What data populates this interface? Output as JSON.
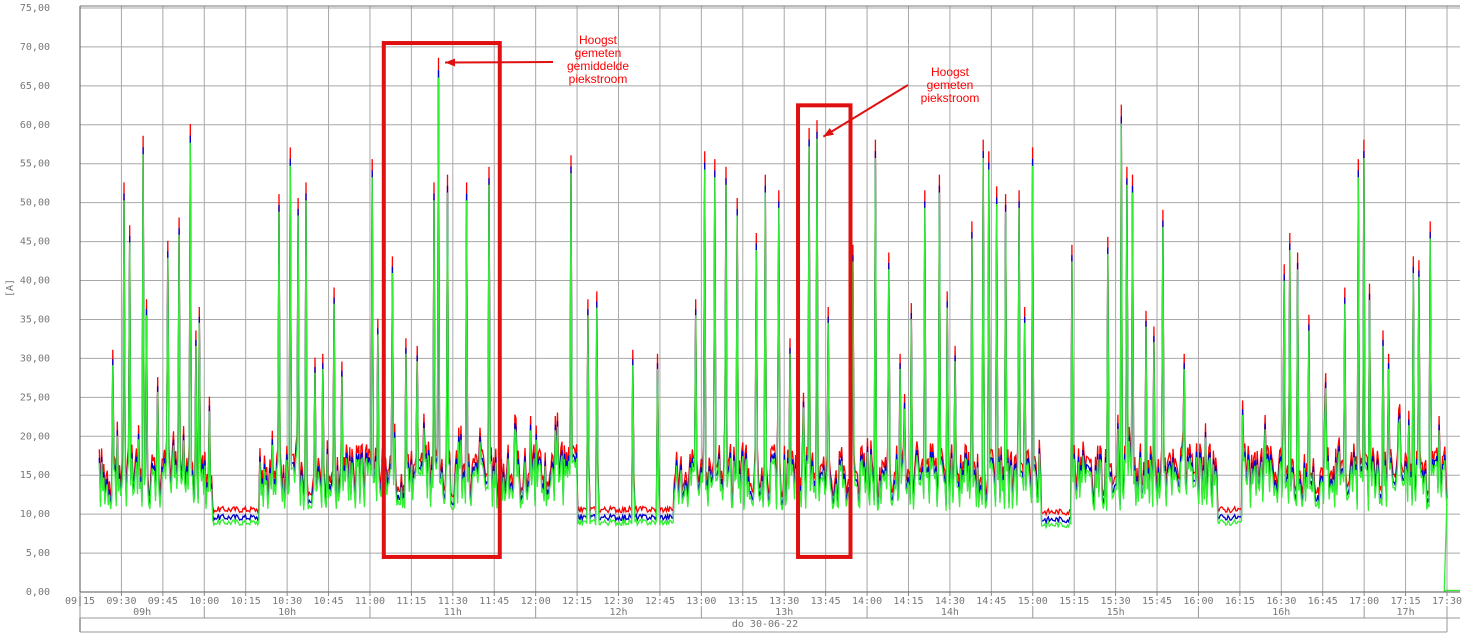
{
  "chart_data": {
    "type": "line",
    "ylabel": "[A]",
    "ylim": [
      0,
      75
    ],
    "yticks": [
      "0,00",
      "5,00",
      "10,00",
      "15,00",
      "20,00",
      "25,00",
      "30,00",
      "35,00",
      "40,00",
      "45,00",
      "50,00",
      "55,00",
      "60,00",
      "65,00",
      "70,00",
      "75,00"
    ],
    "xlim": [
      "09:15",
      "17:30"
    ],
    "xticks": [
      "09:15",
      "09:30",
      "09:45",
      "10:00",
      "10:15",
      "10:30",
      "10:45",
      "11:00",
      "11:15",
      "11:30",
      "11:45",
      "12:00",
      "12:15",
      "12:30",
      "12:45",
      "13:00",
      "13:15",
      "13:30",
      "13:45",
      "14:00",
      "14:15",
      "14:30",
      "14:45",
      "15:00",
      "15:15",
      "15:30",
      "15:45",
      "16:00",
      "16:15",
      "16:30",
      "16:45",
      "17:00",
      "17:15",
      "17:30"
    ],
    "hour_labels": [
      {
        "label": "09h",
        "from": "09:15",
        "to": "10:00"
      },
      {
        "label": "10h",
        "from": "10:00",
        "to": "11:00"
      },
      {
        "label": "11h",
        "from": "11:00",
        "to": "12:00"
      },
      {
        "label": "12h",
        "from": "12:00",
        "to": "13:00"
      },
      {
        "label": "13h",
        "from": "13:00",
        "to": "14:00"
      },
      {
        "label": "14h",
        "from": "14:00",
        "to": "15:00"
      },
      {
        "label": "15h",
        "from": "15:00",
        "to": "16:00"
      },
      {
        "label": "16h",
        "from": "16:00",
        "to": "17:00"
      },
      {
        "label": "17h",
        "from": "17:00",
        "to": "17:30"
      }
    ],
    "date_label": "do 30-06-22",
    "grid": true,
    "series": [
      {
        "color": "#ff0000"
      },
      {
        "color": "#0000cc"
      },
      {
        "color": "#33ee33"
      }
    ],
    "peaks": [
      {
        "t": "09:27",
        "v": 30.5
      },
      {
        "t": "09:31",
        "v": 52.0
      },
      {
        "t": "09:33",
        "v": 46.5
      },
      {
        "t": "09:38",
        "v": 58.0
      },
      {
        "t": "09:39",
        "v": 37.0
      },
      {
        "t": "09:43",
        "v": 27.0
      },
      {
        "t": "09:47",
        "v": 44.5
      },
      {
        "t": "09:51",
        "v": 47.5
      },
      {
        "t": "09:55",
        "v": 59.5
      },
      {
        "t": "09:57",
        "v": 33.0
      },
      {
        "t": "09:58",
        "v": 36.0
      },
      {
        "t": "10:02",
        "v": 24.5
      },
      {
        "t": "10:27",
        "v": 50.5
      },
      {
        "t": "10:31",
        "v": 56.5
      },
      {
        "t": "10:34",
        "v": 50.0
      },
      {
        "t": "10:37",
        "v": 52.0
      },
      {
        "t": "10:40",
        "v": 29.5
      },
      {
        "t": "10:43",
        "v": 30.0
      },
      {
        "t": "10:47",
        "v": 38.5
      },
      {
        "t": "10:50",
        "v": 29.0
      },
      {
        "t": "11:01",
        "v": 55.0
      },
      {
        "t": "11:03",
        "v": 34.5
      },
      {
        "t": "11:08",
        "v": 42.5
      },
      {
        "t": "11:13",
        "v": 32.0
      },
      {
        "t": "11:17",
        "v": 31.0
      },
      {
        "t": "11:23",
        "v": 52.0
      },
      {
        "t": "11:25",
        "v": 68.0
      },
      {
        "t": "11:28",
        "v": 53.0
      },
      {
        "t": "11:32",
        "v": 20.5
      },
      {
        "t": "11:35",
        "v": 52.0
      },
      {
        "t": "11:40",
        "v": 20.5
      },
      {
        "t": "11:43",
        "v": 54.0
      },
      {
        "t": "11:58",
        "v": 22.0
      },
      {
        "t": "12:07",
        "v": 22.0
      },
      {
        "t": "12:13",
        "v": 55.5
      },
      {
        "t": "12:19",
        "v": 37.0
      },
      {
        "t": "12:22",
        "v": 38.0
      },
      {
        "t": "12:35",
        "v": 30.5
      },
      {
        "t": "12:44",
        "v": 30.0
      },
      {
        "t": "12:58",
        "v": 37.0
      },
      {
        "t": "13:01",
        "v": 56.0
      },
      {
        "t": "13:05",
        "v": 55.0
      },
      {
        "t": "13:09",
        "v": 54.0
      },
      {
        "t": "13:13",
        "v": 50.0
      },
      {
        "t": "13:20",
        "v": 45.5
      },
      {
        "t": "13:23",
        "v": 53.0
      },
      {
        "t": "13:28",
        "v": 51.0
      },
      {
        "t": "13:32",
        "v": 32.0
      },
      {
        "t": "13:37",
        "v": 25.0
      },
      {
        "t": "13:39",
        "v": 59.0
      },
      {
        "t": "13:42",
        "v": 60.0
      },
      {
        "t": "13:46",
        "v": 36.0
      },
      {
        "t": "13:55",
        "v": 44.0
      },
      {
        "t": "14:03",
        "v": 57.5
      },
      {
        "t": "14:08",
        "v": 43.0
      },
      {
        "t": "14:12",
        "v": 30.0
      },
      {
        "t": "14:16",
        "v": 36.5
      },
      {
        "t": "14:21",
        "v": 51.0
      },
      {
        "t": "14:26",
        "v": 53.0
      },
      {
        "t": "14:29",
        "v": 38.0
      },
      {
        "t": "14:32",
        "v": 31.0
      },
      {
        "t": "14:38",
        "v": 47.0
      },
      {
        "t": "14:42",
        "v": 57.5
      },
      {
        "t": "14:44",
        "v": 56.0
      },
      {
        "t": "14:47",
        "v": 51.5
      },
      {
        "t": "14:50",
        "v": 50.5
      },
      {
        "t": "14:55",
        "v": 51.0
      },
      {
        "t": "14:57",
        "v": 36.0
      },
      {
        "t": "15:00",
        "v": 56.5
      },
      {
        "t": "15:14",
        "v": 44.0
      },
      {
        "t": "15:27",
        "v": 45.0
      },
      {
        "t": "15:32",
        "v": 62.0
      },
      {
        "t": "15:34",
        "v": 54.0
      },
      {
        "t": "15:36",
        "v": 53.0
      },
      {
        "t": "15:41",
        "v": 35.5
      },
      {
        "t": "15:44",
        "v": 33.5
      },
      {
        "t": "15:47",
        "v": 48.5
      },
      {
        "t": "15:55",
        "v": 30.0
      },
      {
        "t": "16:16",
        "v": 24.0
      },
      {
        "t": "16:31",
        "v": 41.5
      },
      {
        "t": "16:33",
        "v": 45.5
      },
      {
        "t": "16:36",
        "v": 43.0
      },
      {
        "t": "16:40",
        "v": 35.0
      },
      {
        "t": "16:46",
        "v": 27.5
      },
      {
        "t": "16:53",
        "v": 38.5
      },
      {
        "t": "16:58",
        "v": 55.0
      },
      {
        "t": "17:00",
        "v": 57.5
      },
      {
        "t": "17:02",
        "v": 39.0
      },
      {
        "t": "17:07",
        "v": 33.0
      },
      {
        "t": "17:09",
        "v": 30.0
      },
      {
        "t": "17:13",
        "v": 23.5
      },
      {
        "t": "17:18",
        "v": 42.5
      },
      {
        "t": "17:20",
        "v": 42.0
      },
      {
        "t": "17:24",
        "v": 47.0
      },
      {
        "t": "17:27",
        "v": 22.0
      }
    ],
    "quiet_periods": [
      {
        "from": "10:03",
        "to": "10:20",
        "v": 10.0
      },
      {
        "from": "12:15",
        "to": "12:50",
        "v": 10.0
      },
      {
        "from": "15:03",
        "to": "15:14",
        "v": 9.7
      },
      {
        "from": "16:07",
        "to": "16:16",
        "v": 10.0
      }
    ],
    "annotations": [
      {
        "lines": [
          "Hoogst",
          "gemeten",
          "gemiddelde",
          "piekstroom"
        ],
        "box": {
          "from": "11:05",
          "to": "11:47",
          "ymin": 4.5,
          "ymax": 70.5
        },
        "points_to": {
          "t": "11:25",
          "v": 68.0
        }
      },
      {
        "lines": [
          "Hoogst",
          "gemeten",
          "piekstroom"
        ],
        "box": {
          "from": "13:35",
          "to": "13:54",
          "ymin": 4.5,
          "ymax": 62.5
        },
        "points_to": {
          "t": "13:42",
          "v": 59.0
        }
      }
    ]
  }
}
